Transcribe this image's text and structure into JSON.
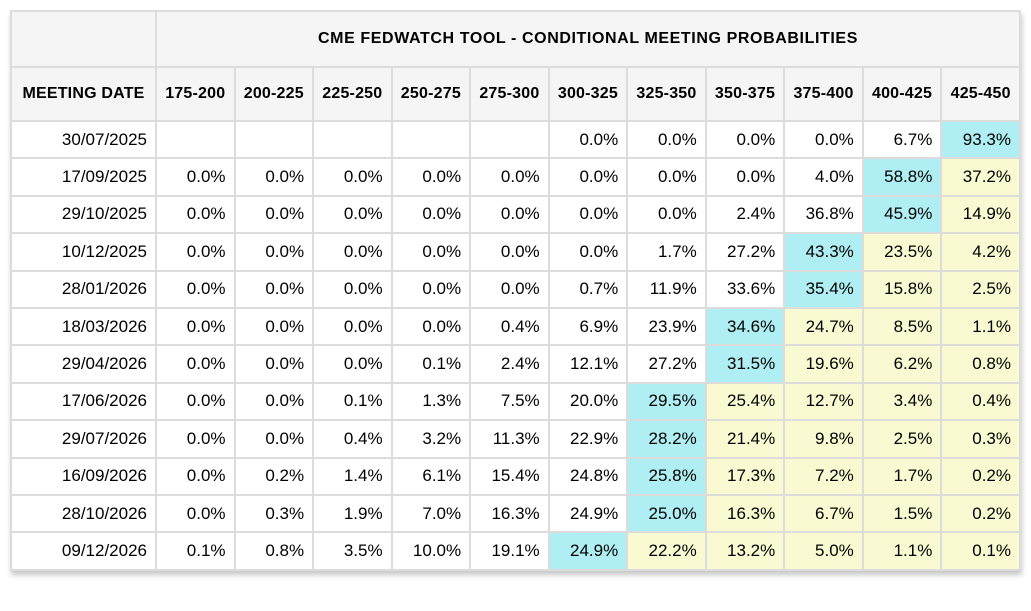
{
  "title": "CME FEDWATCH TOOL - CONDITIONAL MEETING PROBABILITIES",
  "table": {
    "corner_label": "",
    "date_header": "MEETING DATE",
    "rate_headers": [
      "175-200",
      "200-225",
      "225-250",
      "250-275",
      "275-300",
      "300-325",
      "325-350",
      "350-375",
      "375-400",
      "400-425",
      "425-450"
    ],
    "rows": [
      {
        "date": "30/07/2025",
        "values": [
          "",
          "",
          "",
          "",
          "",
          "0.0%",
          "0.0%",
          "0.0%",
          "0.0%",
          "6.7%",
          "93.3%"
        ],
        "styles": [
          "",
          "",
          "",
          "",
          "",
          "",
          "",
          "",
          "",
          "",
          "c"
        ]
      },
      {
        "date": "17/09/2025",
        "values": [
          "0.0%",
          "0.0%",
          "0.0%",
          "0.0%",
          "0.0%",
          "0.0%",
          "0.0%",
          "0.0%",
          "4.0%",
          "58.8%",
          "37.2%"
        ],
        "styles": [
          "",
          "",
          "",
          "",
          "",
          "",
          "",
          "",
          "",
          "c",
          "y"
        ]
      },
      {
        "date": "29/10/2025",
        "values": [
          "0.0%",
          "0.0%",
          "0.0%",
          "0.0%",
          "0.0%",
          "0.0%",
          "0.0%",
          "2.4%",
          "36.8%",
          "45.9%",
          "14.9%"
        ],
        "styles": [
          "",
          "",
          "",
          "",
          "",
          "",
          "",
          "",
          "",
          "c",
          "y"
        ]
      },
      {
        "date": "10/12/2025",
        "values": [
          "0.0%",
          "0.0%",
          "0.0%",
          "0.0%",
          "0.0%",
          "0.0%",
          "1.7%",
          "27.2%",
          "43.3%",
          "23.5%",
          "4.2%"
        ],
        "styles": [
          "",
          "",
          "",
          "",
          "",
          "",
          "",
          "",
          "c",
          "y",
          "y"
        ]
      },
      {
        "date": "28/01/2026",
        "values": [
          "0.0%",
          "0.0%",
          "0.0%",
          "0.0%",
          "0.0%",
          "0.7%",
          "11.9%",
          "33.6%",
          "35.4%",
          "15.8%",
          "2.5%"
        ],
        "styles": [
          "",
          "",
          "",
          "",
          "",
          "",
          "",
          "",
          "c",
          "y",
          "y"
        ]
      },
      {
        "date": "18/03/2026",
        "values": [
          "0.0%",
          "0.0%",
          "0.0%",
          "0.0%",
          "0.4%",
          "6.9%",
          "23.9%",
          "34.6%",
          "24.7%",
          "8.5%",
          "1.1%"
        ],
        "styles": [
          "",
          "",
          "",
          "",
          "",
          "",
          "",
          "c",
          "y",
          "y",
          "y"
        ]
      },
      {
        "date": "29/04/2026",
        "values": [
          "0.0%",
          "0.0%",
          "0.0%",
          "0.1%",
          "2.4%",
          "12.1%",
          "27.2%",
          "31.5%",
          "19.6%",
          "6.2%",
          "0.8%"
        ],
        "styles": [
          "",
          "",
          "",
          "",
          "",
          "",
          "",
          "c",
          "y",
          "y",
          "y"
        ]
      },
      {
        "date": "17/06/2026",
        "values": [
          "0.0%",
          "0.0%",
          "0.1%",
          "1.3%",
          "7.5%",
          "20.0%",
          "29.5%",
          "25.4%",
          "12.7%",
          "3.4%",
          "0.4%"
        ],
        "styles": [
          "",
          "",
          "",
          "",
          "",
          "",
          "c",
          "y",
          "y",
          "y",
          "y"
        ]
      },
      {
        "date": "29/07/2026",
        "values": [
          "0.0%",
          "0.0%",
          "0.4%",
          "3.2%",
          "11.3%",
          "22.9%",
          "28.2%",
          "21.4%",
          "9.8%",
          "2.5%",
          "0.3%"
        ],
        "styles": [
          "",
          "",
          "",
          "",
          "",
          "",
          "c",
          "y",
          "y",
          "y",
          "y"
        ]
      },
      {
        "date": "16/09/2026",
        "values": [
          "0.0%",
          "0.2%",
          "1.4%",
          "6.1%",
          "15.4%",
          "24.8%",
          "25.8%",
          "17.3%",
          "7.2%",
          "1.7%",
          "0.2%"
        ],
        "styles": [
          "",
          "",
          "",
          "",
          "",
          "",
          "c",
          "y",
          "y",
          "y",
          "y"
        ]
      },
      {
        "date": "28/10/2026",
        "values": [
          "0.0%",
          "0.3%",
          "1.9%",
          "7.0%",
          "16.3%",
          "24.9%",
          "25.0%",
          "16.3%",
          "6.7%",
          "1.5%",
          "0.2%"
        ],
        "styles": [
          "",
          "",
          "",
          "",
          "",
          "",
          "c",
          "y",
          "y",
          "y",
          "y"
        ]
      },
      {
        "date": "09/12/2026",
        "values": [
          "0.1%",
          "0.8%",
          "3.5%",
          "10.0%",
          "19.1%",
          "24.9%",
          "22.2%",
          "13.2%",
          "5.0%",
          "1.1%",
          "0.1%"
        ],
        "styles": [
          "",
          "",
          "",
          "",
          "",
          "c",
          "y",
          "y",
          "y",
          "y",
          "y"
        ]
      }
    ]
  },
  "colors": {
    "highlight_max": "#AFEEF2",
    "highlight_after": "#FAFAD2",
    "header_bg": "#F5F5F5",
    "border": "#DCDCDC"
  }
}
